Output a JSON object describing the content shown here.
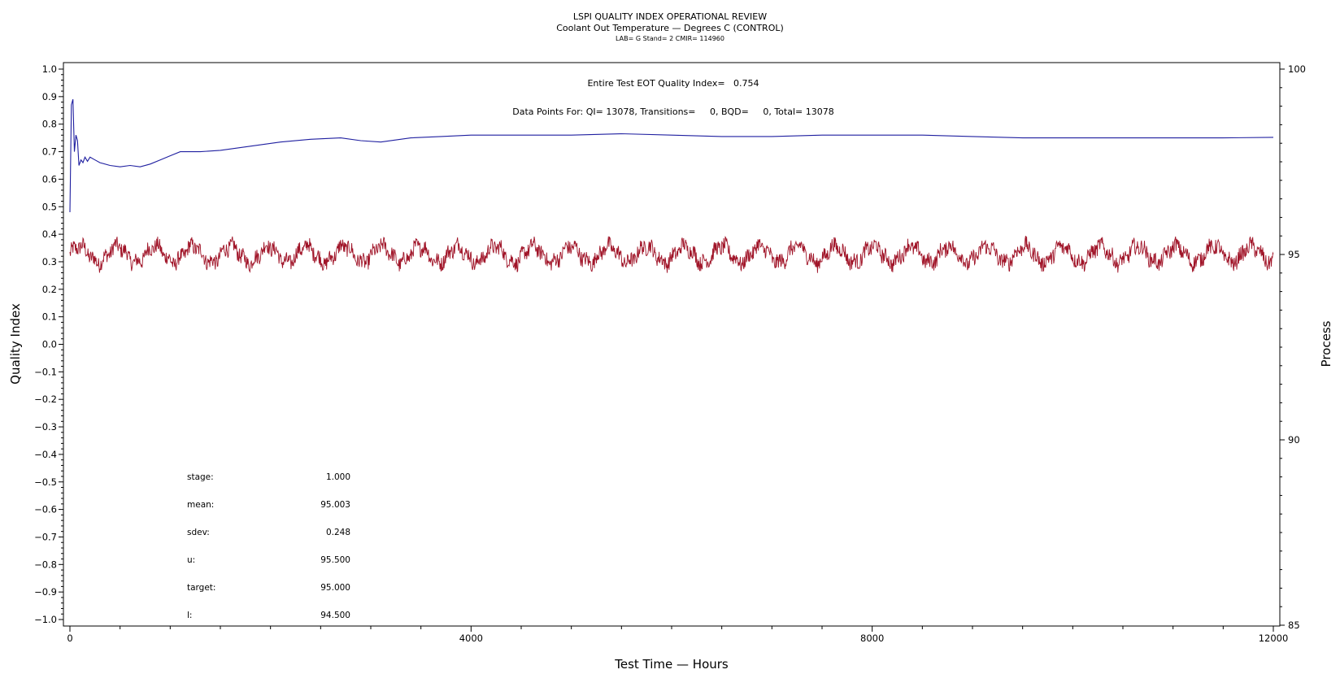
{
  "chart_data": {
    "type": "line",
    "title": "LSPI QUALITY INDEX OPERATIONAL REVIEW",
    "subtitle": "Coolant Out Temperature — Degrees C (CONTROL)",
    "subtitle2": "LAB= G Stand= 2 CMIR= 114960",
    "annotations": {
      "quality_index": "Entire Test EOT Quality Index=   0.754",
      "data_points": "Data Points For: QI= 13078, Transitions=     0, BQD=     0, Total= 13078"
    },
    "xlabel": "Test Time — Hours",
    "ylabel": "Quality Index",
    "y2label": "Process",
    "xlim": [
      0,
      12000
    ],
    "ylim": [
      -1.0,
      1.0
    ],
    "y2lim": [
      85,
      100
    ],
    "x_ticks": [
      "0",
      "4000",
      "8000",
      "12000"
    ],
    "y_ticks": [
      "1.0",
      "0.9",
      "0.8",
      "0.7",
      "0.6",
      "0.5",
      "0.4",
      "0.3",
      "0.2",
      "0.1",
      "0.0",
      "−0.1",
      "−0.2",
      "−0.3",
      "−0.4",
      "−0.5",
      "−0.6",
      "−0.7",
      "−0.8",
      "−0.9",
      "−1.0"
    ],
    "y2_ticks": [
      "100",
      "95",
      "90",
      "85"
    ],
    "grid": false,
    "series": [
      {
        "name": "",
        "axis": "left",
        "color": "#1f1fa0",
        "x": [
          0,
          15,
          30,
          45,
          60,
          75,
          90,
          110,
          130,
          150,
          175,
          200,
          250,
          300,
          400,
          500,
          600,
          700,
          800,
          900,
          1000,
          1100,
          1200,
          1300,
          1500,
          1800,
          2100,
          2400,
          2700,
          2900,
          3100,
          3400,
          3700,
          4000,
          4500,
          5000,
          5500,
          6000,
          6500,
          7000,
          7500,
          8000,
          8500,
          9000,
          9500,
          10000,
          10500,
          11000,
          11500,
          12000
        ],
        "y": [
          0.48,
          0.87,
          0.89,
          0.7,
          0.76,
          0.74,
          0.65,
          0.67,
          0.66,
          0.68,
          0.665,
          0.68,
          0.67,
          0.66,
          0.65,
          0.645,
          0.65,
          0.645,
          0.655,
          0.67,
          0.685,
          0.7,
          0.7,
          0.7,
          0.705,
          0.72,
          0.735,
          0.745,
          0.75,
          0.74,
          0.735,
          0.75,
          0.755,
          0.76,
          0.76,
          0.76,
          0.765,
          0.76,
          0.755,
          0.755,
          0.76,
          0.76,
          0.76,
          0.755,
          0.75,
          0.75,
          0.75,
          0.75,
          0.75,
          0.752
        ]
      },
      {
        "name": "",
        "axis": "right",
        "color": "#a01428",
        "description_only": "",
        "mean": 95.003,
        "sdev": 0.248,
        "range": [
          94.0,
          95.7
        ]
      }
    ],
    "stats": {
      "labels": [
        "stage:",
        "mean:",
        "sdev:",
        "u:",
        "target:",
        "l:"
      ],
      "values": [
        "1.000",
        "95.003",
        "0.248",
        "95.500",
        "95.000",
        "94.500"
      ]
    }
  }
}
